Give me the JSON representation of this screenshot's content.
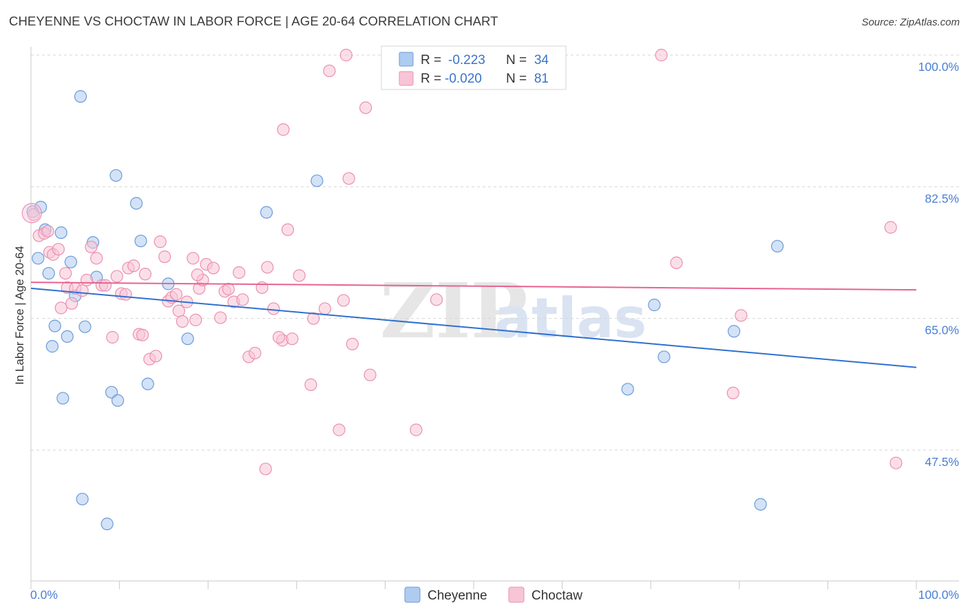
{
  "title": "CHEYENNE VS CHOCTAW IN LABOR FORCE | AGE 20-64 CORRELATION CHART",
  "source": "Source: ZipAtlas.com",
  "watermark": {
    "zip": "ZIP",
    "atlas": "atlas"
  },
  "legend": {
    "r_label": "R =",
    "n_label": "N =",
    "series": [
      {
        "name": "Cheyenne",
        "r": "-0.223",
        "n": "34"
      },
      {
        "name": "Choctaw",
        "r": "-0.020",
        "n": "81"
      }
    ]
  },
  "colors": {
    "cheyenne_fill": "#aecbf0",
    "cheyenne_stroke": "#6b9bd8",
    "cheyenne_line": "#2f6fd0",
    "choctaw_fill": "#f7c5d6",
    "choctaw_stroke": "#eb8fb0",
    "choctaw_line": "#e8628f",
    "tick_text": "#4a7fd4",
    "grid": "#d6d6d6"
  },
  "chart_data": {
    "type": "scatter",
    "title": "CHEYENNE VS CHOCTAW IN LABOR FORCE | AGE 20-64 CORRELATION CHART",
    "xlabel": "",
    "ylabel": "In Labor Force | Age 20-64",
    "xlim": [
      0,
      100
    ],
    "ylim": [
      32.5,
      102
    ],
    "x_tick_labels": {
      "left": "0.0%",
      "right": "100.0%"
    },
    "y_ticks": [
      {
        "value": 100.0,
        "label": "100.0%"
      },
      {
        "value": 82.5,
        "label": "82.5%"
      },
      {
        "value": 65.0,
        "label": "65.0%"
      },
      {
        "value": 47.5,
        "label": "47.5%"
      }
    ],
    "series": [
      {
        "name": "Cheyenne",
        "trend": {
          "x": [
            0,
            100
          ],
          "y": [
            69.0,
            58.5
          ]
        },
        "points": [
          [
            0.2,
            79.2
          ],
          [
            1.1,
            79.8
          ],
          [
            0.8,
            73.0
          ],
          [
            1.6,
            76.8
          ],
          [
            3.4,
            76.4
          ],
          [
            2.0,
            71.0
          ],
          [
            2.4,
            61.3
          ],
          [
            2.7,
            64.0
          ],
          [
            3.6,
            54.4
          ],
          [
            4.1,
            62.6
          ],
          [
            4.5,
            72.5
          ],
          [
            5.0,
            68.0
          ],
          [
            5.6,
            94.5
          ],
          [
            6.1,
            63.9
          ],
          [
            7.0,
            75.1
          ],
          [
            7.4,
            70.5
          ],
          [
            5.8,
            41.0
          ],
          [
            8.6,
            37.7
          ],
          [
            9.1,
            55.2
          ],
          [
            9.6,
            84.0
          ],
          [
            9.8,
            54.1
          ],
          [
            11.9,
            80.3
          ],
          [
            12.4,
            75.3
          ],
          [
            13.2,
            56.3
          ],
          [
            15.5,
            69.6
          ],
          [
            17.7,
            62.3
          ],
          [
            26.6,
            79.1
          ],
          [
            32.3,
            83.3
          ],
          [
            67.4,
            55.6
          ],
          [
            70.4,
            66.8
          ],
          [
            71.5,
            59.9
          ],
          [
            79.4,
            63.3
          ],
          [
            84.3,
            74.6
          ],
          [
            82.4,
            40.3
          ]
        ]
      },
      {
        "name": "Choctaw",
        "trend": {
          "x": [
            0,
            100
          ],
          "y": [
            69.8,
            68.8
          ]
        },
        "points": [
          [
            0.3,
            78.8
          ],
          [
            0.9,
            76.0
          ],
          [
            1.5,
            76.3
          ],
          [
            1.9,
            76.6
          ],
          [
            2.1,
            73.8
          ],
          [
            2.5,
            73.5
          ],
          [
            3.1,
            74.2
          ],
          [
            3.4,
            66.4
          ],
          [
            3.9,
            71.0
          ],
          [
            4.1,
            69.1
          ],
          [
            4.6,
            67.0
          ],
          [
            5.0,
            69.0
          ],
          [
            5.8,
            68.7
          ],
          [
            6.3,
            70.1
          ],
          [
            6.8,
            74.5
          ],
          [
            7.4,
            73.0
          ],
          [
            8.0,
            69.4
          ],
          [
            8.4,
            69.4
          ],
          [
            9.2,
            62.5
          ],
          [
            9.7,
            70.6
          ],
          [
            10.2,
            68.3
          ],
          [
            10.7,
            68.2
          ],
          [
            11.0,
            71.7
          ],
          [
            11.6,
            72.0
          ],
          [
            12.2,
            62.9
          ],
          [
            12.6,
            62.8
          ],
          [
            12.9,
            70.9
          ],
          [
            13.4,
            59.6
          ],
          [
            14.1,
            60.0
          ],
          [
            14.6,
            75.2
          ],
          [
            15.1,
            73.2
          ],
          [
            15.5,
            67.3
          ],
          [
            15.9,
            67.8
          ],
          [
            16.4,
            68.2
          ],
          [
            16.7,
            66.0
          ],
          [
            17.1,
            64.6
          ],
          [
            17.6,
            67.2
          ],
          [
            18.3,
            73.0
          ],
          [
            18.6,
            64.8
          ],
          [
            19.0,
            69.0
          ],
          [
            19.4,
            70.1
          ],
          [
            19.8,
            72.2
          ],
          [
            20.6,
            71.7
          ],
          [
            21.4,
            65.1
          ],
          [
            21.9,
            68.6
          ],
          [
            22.3,
            68.9
          ],
          [
            22.9,
            67.2
          ],
          [
            23.5,
            71.1
          ],
          [
            23.9,
            67.5
          ],
          [
            24.6,
            59.9
          ],
          [
            25.3,
            60.4
          ],
          [
            26.1,
            69.1
          ],
          [
            26.7,
            71.8
          ],
          [
            27.4,
            66.3
          ],
          [
            28.4,
            62.1
          ],
          [
            29.5,
            62.3
          ],
          [
            30.3,
            70.7
          ],
          [
            31.6,
            56.2
          ],
          [
            31.9,
            65.0
          ],
          [
            33.2,
            66.3
          ],
          [
            33.7,
            97.9
          ],
          [
            35.6,
            100.0
          ],
          [
            35.3,
            67.4
          ],
          [
            36.3,
            61.6
          ],
          [
            37.8,
            93.0
          ],
          [
            38.3,
            57.5
          ],
          [
            29.0,
            76.8
          ],
          [
            28.5,
            90.1
          ],
          [
            35.9,
            83.6
          ],
          [
            26.5,
            45.0
          ],
          [
            34.8,
            50.2
          ],
          [
            43.5,
            50.2
          ],
          [
            45.8,
            67.5
          ],
          [
            71.2,
            100.0
          ],
          [
            72.9,
            72.4
          ],
          [
            79.3,
            55.1
          ],
          [
            80.2,
            65.4
          ],
          [
            97.1,
            77.1
          ],
          [
            97.7,
            45.8
          ],
          [
            28.0,
            62.5
          ],
          [
            18.8,
            70.8
          ]
        ]
      }
    ]
  }
}
